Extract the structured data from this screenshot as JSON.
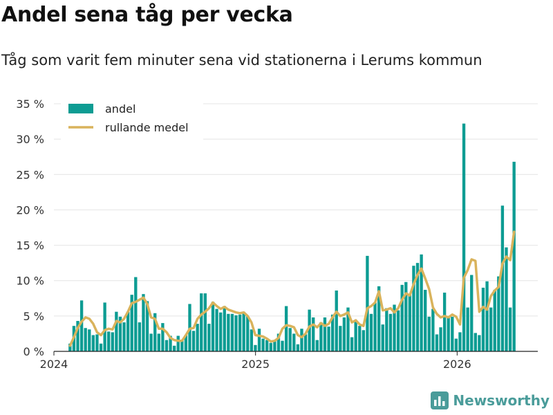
{
  "header": {
    "title": "Andel sena tåg per vecka",
    "subtitle": "Tåg som varit fem minuter sena vid stationerna i Lerums kommun"
  },
  "brand": {
    "name": "Newsworthy",
    "icon": "bar-chart-logo-icon"
  },
  "colors": {
    "bars": "#0d9c93",
    "line": "#d9b35c",
    "grid": "#e4e4e4",
    "axis": "#222222",
    "brand": "#4a9c9a"
  },
  "chart_data": {
    "type": "bar",
    "title": "Andel sena tåg per vecka",
    "xlabel": "",
    "ylabel": "",
    "ylim": [
      0,
      35
    ],
    "yticks": [
      0,
      5,
      10,
      15,
      20,
      25,
      30,
      35
    ],
    "ytick_labels": [
      "0 %",
      "5 %",
      "10 %",
      "15 %",
      "20 %",
      "25 %",
      "30 %",
      "35 %"
    ],
    "xlim": [
      2024.0,
      2026.4
    ],
    "xticks": [
      2024,
      2025,
      2026
    ],
    "xtick_labels": [
      "2024",
      "2025",
      "2026"
    ],
    "x_start": 2024.08,
    "x_step": 0.01915,
    "legend": {
      "position": "top-left",
      "entries": [
        "andel",
        "rullande medel"
      ]
    },
    "series": [
      {
        "name": "andel",
        "kind": "bar",
        "values": [
          1.1,
          3.6,
          4.3,
          7.2,
          3.3,
          3.1,
          2.3,
          2.4,
          1.1,
          6.9,
          2.8,
          2.7,
          5.6,
          4.9,
          4.1,
          5.6,
          8.0,
          10.5,
          4.1,
          8.1,
          7.1,
          2.5,
          5.4,
          2.5,
          4.0,
          1.6,
          2.2,
          0.8,
          2.2,
          1.6,
          2.3,
          6.7,
          2.9,
          3.9,
          8.2,
          8.2,
          3.9,
          7.0,
          6.0,
          5.5,
          6.4,
          5.3,
          5.3,
          5.1,
          5.2,
          5.5,
          5.0,
          3.1,
          0.9,
          3.2,
          1.8,
          1.6,
          1.2,
          1.6,
          2.5,
          1.5,
          6.4,
          3.3,
          2.5,
          1.0,
          3.2,
          2.4,
          5.9,
          4.8,
          1.6,
          4.1,
          4.8,
          3.5,
          5.2,
          8.6,
          3.6,
          4.8,
          6.2,
          2.0,
          4.3,
          3.6,
          3.0,
          13.5,
          5.3,
          6.9,
          9.2,
          3.8,
          6.1,
          5.3,
          6.6,
          5.8,
          9.4,
          9.8,
          8.1,
          12.1,
          12.5,
          13.7,
          8.7,
          4.9,
          6.0,
          2.4,
          3.4,
          8.3,
          5.0,
          4.9,
          1.8,
          2.7,
          32.2,
          6.2,
          10.8,
          2.6,
          2.3,
          9.0,
          9.9,
          6.2,
          8.7,
          10.6,
          20.6,
          14.7,
          6.2,
          26.8
        ]
      },
      {
        "name": "rullande medel",
        "kind": "line",
        "values": [
          0.8,
          2.0,
          3.3,
          4.2,
          4.8,
          4.6,
          3.9,
          2.7,
          2.3,
          3.0,
          3.2,
          3.1,
          4.3,
          4.1,
          4.6,
          5.6,
          6.8,
          7.0,
          7.3,
          7.6,
          6.7,
          4.8,
          4.6,
          3.2,
          3.2,
          2.7,
          1.9,
          1.6,
          1.5,
          1.5,
          2.3,
          3.2,
          3.3,
          4.6,
          5.2,
          5.6,
          6.1,
          6.9,
          6.4,
          6.0,
          6.3,
          5.9,
          5.7,
          5.5,
          5.4,
          5.5,
          5.0,
          4.1,
          2.3,
          2.2,
          2.1,
          1.8,
          1.4,
          1.5,
          1.9,
          3.2,
          3.7,
          3.6,
          3.4,
          2.3,
          2.0,
          2.5,
          3.5,
          3.8,
          3.4,
          4.0,
          3.6,
          3.9,
          4.8,
          5.6,
          5.0,
          5.2,
          5.5,
          4.1,
          4.4,
          3.8,
          3.6,
          6.1,
          6.4,
          6.9,
          8.5,
          5.8,
          5.9,
          6.1,
          5.5,
          6.1,
          7.3,
          8.2,
          7.9,
          9.5,
          10.8,
          11.7,
          10.3,
          8.8,
          6.2,
          5.3,
          4.8,
          5.0,
          4.8,
          5.2,
          4.9,
          3.8,
          10.4,
          11.5,
          13.0,
          12.8,
          5.6,
          6.3,
          5.9,
          7.8,
          8.6,
          9.1,
          12.4,
          13.4,
          12.9,
          16.9
        ]
      }
    ]
  }
}
